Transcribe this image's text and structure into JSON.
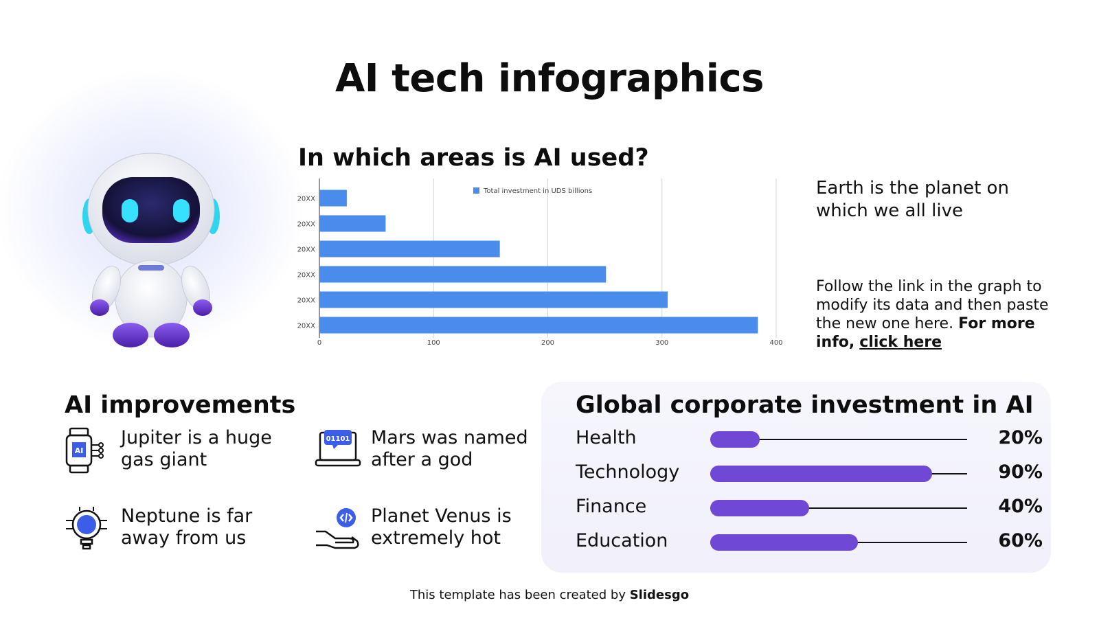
{
  "title": "AI tech infographics",
  "chart_section": {
    "title": "In which areas is AI used?"
  },
  "chart_data": {
    "type": "bar",
    "orientation": "horizontal",
    "categories": [
      "20XX",
      "20XX",
      "20XX",
      "20XX",
      "20XX",
      "20XX"
    ],
    "series": [
      {
        "name": "Total investment in UDS billions",
        "values": [
          24,
          58,
          158,
          251,
          305,
          384
        ]
      }
    ],
    "xlim": [
      0,
      400
    ],
    "xticks": [
      0,
      100,
      200,
      300,
      400
    ],
    "grid": true,
    "legend_position": "top-center",
    "bar_color": "#4a8cec"
  },
  "side_text": {
    "line1": "Earth is the planet on which we all live",
    "line2_plain": "Follow the link in the graph to modify its data and then paste the new one here.",
    "line2_bold": "For more info,",
    "line2_link": "click here"
  },
  "improvements": {
    "title": "AI improvements",
    "items": [
      {
        "icon": "smartwatch-ai-icon",
        "text": "Jupiter is a huge gas giant"
      },
      {
        "icon": "laptop-binary-icon",
        "text": "Mars was named after a god"
      },
      {
        "icon": "lightbulb-chip-icon",
        "text": "Neptune is far away from us"
      },
      {
        "icon": "hand-code-icon",
        "text": "Planet Venus is extremely hot"
      }
    ],
    "laptop_screen_text": "01101",
    "watch_text": "AI"
  },
  "investment": {
    "title": "Global corporate investment in AI",
    "bar_color": "#6f48d6",
    "rows": [
      {
        "label": "Health",
        "value": 0.2,
        "pct": "20%"
      },
      {
        "label": "Technology",
        "value": 0.9,
        "pct": "90%"
      },
      {
        "label": "Finance",
        "value": 0.4,
        "pct": "40%"
      },
      {
        "label": "Education",
        "value": 0.6,
        "pct": "60%"
      }
    ]
  },
  "footer": {
    "prefix": "This template has been created by",
    "brand": "Slidesgo"
  }
}
